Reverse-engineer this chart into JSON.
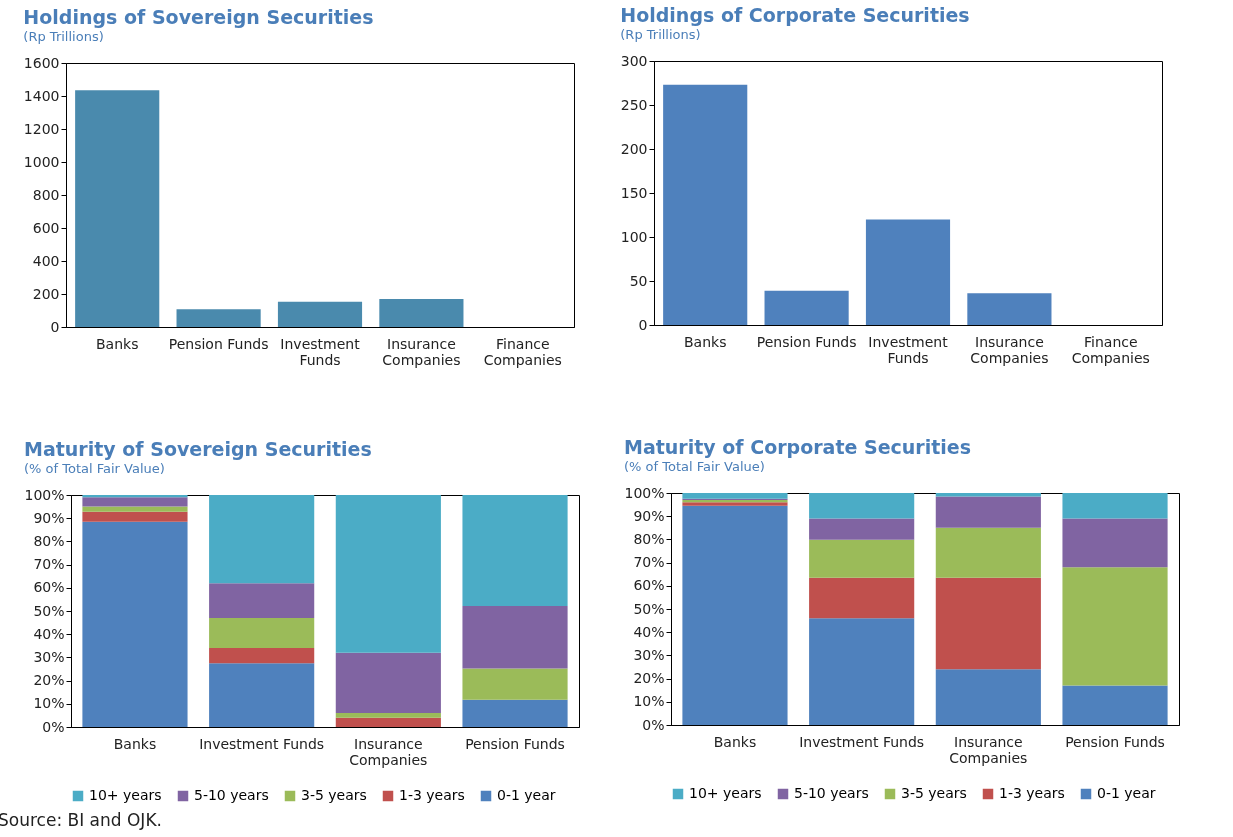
{
  "chart_data": [
    {
      "type": "bar",
      "title": "Holdings of Sovereign Securities",
      "subtitle": "(Rp Trillions)",
      "categories": [
        "Banks",
        "Pension Funds",
        "Investment Funds",
        "Insurance Companies",
        "Finance Companies"
      ],
      "values": [
        1435,
        107,
        153,
        170,
        null
      ],
      "color": "#4a8aad",
      "ylim": [
        0,
        1600
      ],
      "yticks": [
        0,
        200,
        400,
        600,
        800,
        1000,
        1200,
        1400,
        1600
      ],
      "grid": false
    },
    {
      "type": "bar",
      "title": "Holdings of Corporate Securities",
      "subtitle": "(Rp Trillions)",
      "categories": [
        "Banks",
        "Pension Funds",
        "Investment Funds",
        "Insurance Companies",
        "Finance Companies"
      ],
      "values": [
        273,
        39,
        120,
        36,
        0
      ],
      "color": "#4f81bd",
      "ylim": [
        0,
        300
      ],
      "yticks": [
        0,
        50,
        100,
        150,
        200,
        250,
        300
      ],
      "grid": false
    },
    {
      "type": "bar",
      "title": "Maturity of Sovereign Securities",
      "subtitle": "(% of Total Fair Value)",
      "categories": [
        "Banks",
        "Investment Funds",
        "Insurance Companies",
        "Pension Funds"
      ],
      "stacked": true,
      "legend": "bottom",
      "grid": false,
      "ylim": [
        0,
        100
      ],
      "yticks": [
        {
          "value": 0,
          "label": "0%"
        },
        {
          "value": 10,
          "label": "10%"
        },
        {
          "value": 20,
          "label": "20%"
        },
        {
          "value": 30,
          "label": "30%"
        },
        {
          "value": 40,
          "label": "40%"
        },
        {
          "value": 50,
          "label": "50%"
        },
        {
          "value": 60,
          "label": "60%"
        },
        {
          "value": 70,
          "label": "70%"
        },
        {
          "value": 80,
          "label": "80%"
        },
        {
          "value": 90,
          "label": "90%"
        },
        {
          "value": 100,
          "label": "100%"
        }
      ],
      "series": [
        {
          "name": "0-1 year",
          "color": "#4f81bd",
          "values": [
            88.5,
            27.5,
            0,
            11.7
          ]
        },
        {
          "name": "1-3 years",
          "color": "#c0504d",
          "values": [
            4.3,
            6.5,
            4,
            0
          ]
        },
        {
          "name": "3-5 years",
          "color": "#9bbb59",
          "values": [
            2.2,
            13,
            2,
            13.5
          ]
        },
        {
          "name": "5-10 years",
          "color": "#8064a2",
          "values": [
            4,
            15,
            26,
            27
          ]
        },
        {
          "name": "10+ years",
          "color": "#4bacc6",
          "values": [
            1,
            38,
            68,
            47.8
          ]
        }
      ],
      "annotations": [
        "Source: BI and OJK."
      ]
    },
    {
      "type": "bar",
      "title": "Maturity of Corporate Securities",
      "subtitle": "(% of Total Fair Value)",
      "categories": [
        "Banks",
        "Investment Funds",
        "Insurance Companies",
        "Pension Funds"
      ],
      "stacked": true,
      "legend": "bottom",
      "grid": false,
      "ylim": [
        0,
        100
      ],
      "yticks": [
        {
          "value": 0,
          "label": "0%"
        },
        {
          "value": 10,
          "label": "10%"
        },
        {
          "value": 20,
          "label": "20%"
        },
        {
          "value": 30,
          "label": "30%"
        },
        {
          "value": 40,
          "label": "40%"
        },
        {
          "value": 50,
          "label": "50%"
        },
        {
          "value": 60,
          "label": "60%"
        },
        {
          "value": 70,
          "label": "70%"
        },
        {
          "value": 80,
          "label": "80%"
        },
        {
          "value": 90,
          "label": "90%"
        },
        {
          "value": 100,
          "label": "100%"
        }
      ],
      "series": [
        {
          "name": "0-1 year",
          "color": "#4f81bd",
          "values": [
            94.5,
            46,
            24,
            17
          ]
        },
        {
          "name": "1-3 years",
          "color": "#c0504d",
          "values": [
            1.5,
            17.5,
            39.5,
            0
          ]
        },
        {
          "name": "3-5 years",
          "color": "#9bbb59",
          "values": [
            1,
            16.3,
            21.5,
            51
          ]
        },
        {
          "name": "5-10 years",
          "color": "#8064a2",
          "values": [
            0.5,
            9.2,
            13.5,
            21
          ]
        },
        {
          "name": "10+ years",
          "color": "#4bacc6",
          "values": [
            2.5,
            11,
            1.5,
            11
          ]
        }
      ]
    }
  ]
}
